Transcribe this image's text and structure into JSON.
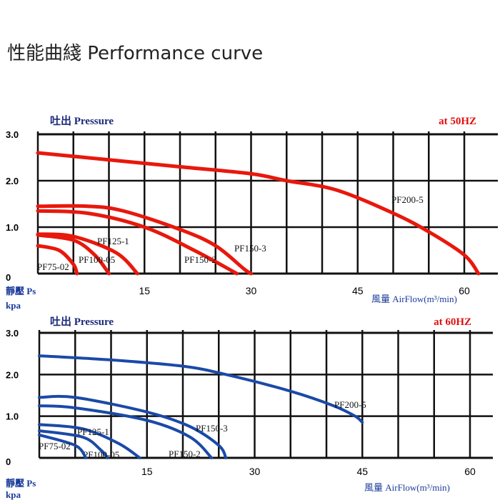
{
  "title": "性能曲綫 Performance curve",
  "chart_data": [
    {
      "type": "line",
      "freq_label": "at 50HZ",
      "ylabel_top": "吐出 Pressure",
      "ylabel_bottom_1": "靜壓 Ps",
      "ylabel_bottom_2": "kpa",
      "xlabel": "風量 AirFlow(m³/min)",
      "xlim": [
        0,
        62
      ],
      "ylim": [
        0,
        3
      ],
      "xticks": [
        15,
        30,
        45,
        60
      ],
      "xtick_labels": [
        "15",
        "30",
        "45",
        "60"
      ],
      "yticks": [
        0,
        1,
        2,
        3
      ],
      "ytick_labels": [
        "0",
        "1.0",
        "2.0",
        "3.0"
      ],
      "color": "#e8180c",
      "series": [
        {
          "name": "PF200-5",
          "points": [
            [
              0,
              2.6
            ],
            [
              10,
              2.45
            ],
            [
              20,
              2.3
            ],
            [
              30,
              2.15
            ],
            [
              35,
              2.0
            ],
            [
              42,
              1.8
            ],
            [
              50,
              1.3
            ],
            [
              55,
              0.9
            ],
            [
              60,
              0.4
            ],
            [
              62,
              0
            ]
          ]
        },
        {
          "name": "PF150-3",
          "points": [
            [
              0,
              1.45
            ],
            [
              7,
              1.45
            ],
            [
              12,
              1.35
            ],
            [
              20,
              0.95
            ],
            [
              25,
              0.6
            ],
            [
              29,
              0.1
            ],
            [
              30,
              0
            ]
          ]
        },
        {
          "name": "PF150-2",
          "points": [
            [
              0,
              1.35
            ],
            [
              7,
              1.3
            ],
            [
              15,
              1.0
            ],
            [
              22,
              0.5
            ],
            [
              28,
              0
            ]
          ]
        },
        {
          "name": "PF125-1",
          "points": [
            [
              0,
              0.85
            ],
            [
              5,
              0.8
            ],
            [
              11,
              0.45
            ],
            [
              14,
              0
            ]
          ]
        },
        {
          "name": "PF100-05",
          "points": [
            [
              0,
              0.83
            ],
            [
              5,
              0.72
            ],
            [
              8,
              0.4
            ],
            [
              10,
              0
            ]
          ]
        },
        {
          "name": "PF75-02",
          "points": [
            [
              0,
              0.6
            ],
            [
              3,
              0.5
            ],
            [
              5,
              0.2
            ],
            [
              5.5,
              0
            ]
          ]
        }
      ]
    },
    {
      "type": "line",
      "freq_label": "at 60HZ",
      "ylabel_top": "吐出 Pressure",
      "ylabel_bottom_1": "靜壓 Ps",
      "ylabel_bottom_2": "kpa",
      "xlabel": "風量 AirFlow(m³/min)",
      "xlim": [
        0,
        62
      ],
      "ylim": [
        0,
        3
      ],
      "xticks": [
        15,
        30,
        45,
        60
      ],
      "xtick_labels": [
        "15",
        "30",
        "45",
        "60"
      ],
      "yticks": [
        0,
        1,
        2,
        3
      ],
      "ytick_labels": [
        "0",
        "1.0",
        "2.0",
        "3.0"
      ],
      "color": "#1a4aa8",
      "series": [
        {
          "name": "PF200-5",
          "points": [
            [
              0,
              2.45
            ],
            [
              10,
              2.35
            ],
            [
              20,
              2.2
            ],
            [
              26,
              2.0
            ],
            [
              35,
              1.6
            ],
            [
              41,
              1.25
            ],
            [
              44,
              1.0
            ],
            [
              45,
              0.85
            ]
          ]
        },
        {
          "name": "PF150-3",
          "points": [
            [
              0,
              1.45
            ],
            [
              5,
              1.45
            ],
            [
              15,
              1.1
            ],
            [
              21,
              0.75
            ],
            [
              25,
              0.3
            ],
            [
              26,
              0
            ]
          ]
        },
        {
          "name": "PF150-2",
          "points": [
            [
              0,
              1.25
            ],
            [
              5,
              1.2
            ],
            [
              15,
              0.9
            ],
            [
              21,
              0.5
            ],
            [
              24,
              0
            ]
          ]
        },
        {
          "name": "PF125-1",
          "points": [
            [
              0,
              0.8
            ],
            [
              6,
              0.7
            ],
            [
              11,
              0.35
            ],
            [
              14,
              0
            ]
          ]
        },
        {
          "name": "PF100-05",
          "points": [
            [
              0,
              0.65
            ],
            [
              6,
              0.5
            ],
            [
              8.5,
              0.2
            ],
            [
              9.5,
              0
            ]
          ]
        },
        {
          "name": "PF75-02",
          "points": [
            [
              0,
              0.55
            ],
            [
              5,
              0.3
            ],
            [
              6.5,
              0
            ]
          ]
        }
      ]
    }
  ]
}
